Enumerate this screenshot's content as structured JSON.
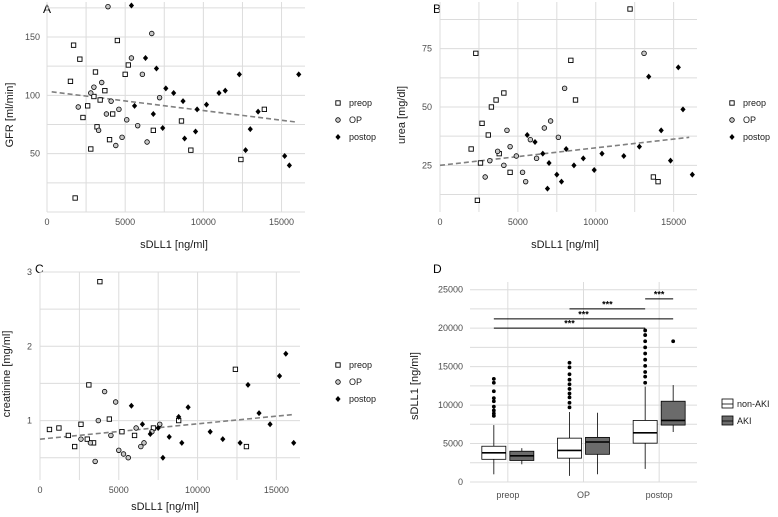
{
  "chart_data": [
    {
      "panel": "A",
      "type": "scatter",
      "xlabel": "sDLL1 [ng/ml]",
      "ylabel": "GFR [ml/min]",
      "xlim": [
        0,
        16500
      ],
      "ylim": [
        0,
        180
      ],
      "xticks": [
        0,
        5000,
        10000,
        15000
      ],
      "yticks": [
        50,
        100,
        150
      ],
      "legend": [
        "preop",
        "OP",
        "postop"
      ],
      "trend": [
        [
          300,
          103
        ],
        [
          16000,
          77
        ]
      ],
      "series": [
        {
          "name": "preop",
          "marker": "square",
          "points": [
            [
              1700,
              143
            ],
            [
              2100,
              131
            ],
            [
              1500,
              112
            ],
            [
              3000,
              99
            ],
            [
              3400,
              96
            ],
            [
              1800,
              12
            ],
            [
              2300,
              81
            ],
            [
              4000,
              62
            ],
            [
              2800,
              54
            ],
            [
              3200,
              73
            ],
            [
              4500,
              147
            ],
            [
              5200,
              126
            ],
            [
              3700,
              104
            ],
            [
              5000,
              118
            ],
            [
              6800,
              70
            ],
            [
              8600,
              78
            ],
            [
              9200,
              53
            ],
            [
              12400,
              45
            ],
            [
              13900,
              88
            ],
            [
              2600,
              91
            ],
            [
              4200,
              84
            ],
            [
              3100,
              120
            ]
          ]
        },
        {
          "name": "OP",
          "marker": "circle",
          "points": [
            [
              2000,
              90
            ],
            [
              2800,
              102
            ],
            [
              3500,
              111
            ],
            [
              4100,
              95
            ],
            [
              4600,
              88
            ],
            [
              5100,
              79
            ],
            [
              3900,
              176
            ],
            [
              6700,
              153
            ],
            [
              5400,
              132
            ],
            [
              6100,
              118
            ],
            [
              4800,
              64
            ],
            [
              3300,
              70
            ],
            [
              7200,
              98
            ],
            [
              5800,
              74
            ],
            [
              6400,
              60
            ],
            [
              4400,
              57
            ],
            [
              3000,
              107
            ],
            [
              3800,
              84
            ]
          ]
        },
        {
          "name": "postop",
          "marker": "diamond",
          "points": [
            [
              5400,
              177
            ],
            [
              6300,
              132
            ],
            [
              7000,
              123
            ],
            [
              7600,
              106
            ],
            [
              8100,
              102
            ],
            [
              8700,
              95
            ],
            [
              9600,
              88
            ],
            [
              10200,
              92
            ],
            [
              11400,
              104
            ],
            [
              12300,
              118
            ],
            [
              12700,
              53
            ],
            [
              13000,
              71
            ],
            [
              13500,
              86
            ],
            [
              15200,
              48
            ],
            [
              15500,
              40
            ],
            [
              16100,
              118
            ],
            [
              11000,
              102
            ],
            [
              6800,
              84
            ],
            [
              7400,
              72
            ],
            [
              8800,
              63
            ],
            [
              9500,
              69
            ],
            [
              5600,
              91
            ]
          ]
        }
      ]
    },
    {
      "panel": "B",
      "type": "scatter",
      "xlabel": "sDLL1 [ng/ml]",
      "ylabel": "urea [mg/dl]",
      "xlim": [
        0,
        16500
      ],
      "ylim": [
        5,
        95
      ],
      "xticks": [
        0,
        5000,
        10000,
        15000
      ],
      "yticks": [
        25,
        50,
        75
      ],
      "legend": [
        "preop",
        "OP",
        "postop"
      ],
      "trend": [
        [
          0,
          25
        ],
        [
          16000,
          37
        ]
      ],
      "series": [
        {
          "name": "preop",
          "marker": "square",
          "points": [
            [
              2300,
              73
            ],
            [
              3300,
              50
            ],
            [
              3600,
              53
            ],
            [
              4100,
              56
            ],
            [
              2700,
              43
            ],
            [
              3100,
              38
            ],
            [
              2000,
              32
            ],
            [
              2600,
              26
            ],
            [
              8400,
              70
            ],
            [
              8700,
              53
            ],
            [
              12200,
              92
            ],
            [
              13700,
              20
            ],
            [
              14000,
              18
            ],
            [
              2400,
              10
            ],
            [
              4500,
              22
            ],
            [
              3800,
              30
            ]
          ]
        },
        {
          "name": "OP",
          "marker": "circle",
          "points": [
            [
              3200,
              27
            ],
            [
              3700,
              31
            ],
            [
              4100,
              25
            ],
            [
              4500,
              33
            ],
            [
              4900,
              29
            ],
            [
              5300,
              22
            ],
            [
              5800,
              36
            ],
            [
              6200,
              28
            ],
            [
              6700,
              41
            ],
            [
              7100,
              44
            ],
            [
              7600,
              37
            ],
            [
              8000,
              58
            ],
            [
              13100,
              73
            ],
            [
              2900,
              20
            ],
            [
              4300,
              40
            ],
            [
              5500,
              18
            ]
          ]
        },
        {
          "name": "postop",
          "marker": "diamond",
          "points": [
            [
              5600,
              38
            ],
            [
              6100,
              35
            ],
            [
              6600,
              30
            ],
            [
              7000,
              26
            ],
            [
              7500,
              21
            ],
            [
              8100,
              32
            ],
            [
              8600,
              25
            ],
            [
              9200,
              28
            ],
            [
              10400,
              30
            ],
            [
              11800,
              29
            ],
            [
              12800,
              33
            ],
            [
              13400,
              63
            ],
            [
              14200,
              40
            ],
            [
              14800,
              27
            ],
            [
              15300,
              67
            ],
            [
              15600,
              49
            ],
            [
              16200,
              21
            ],
            [
              6900,
              15
            ],
            [
              7800,
              18
            ],
            [
              9900,
              23
            ]
          ]
        }
      ]
    },
    {
      "panel": "C",
      "type": "scatter",
      "xlabel": "sDLL1 [ng/ml]",
      "ylabel": "creatinine [mg/ml]",
      "xlim": [
        0,
        16500
      ],
      "ylim": [
        0.2,
        3.0
      ],
      "xticks": [
        0,
        5000,
        10000,
        15000
      ],
      "yticks": [
        1,
        2,
        3
      ],
      "legend": [
        "preop",
        "OP",
        "postop"
      ],
      "trend": [
        [
          0,
          0.75
        ],
        [
          16000,
          1.08
        ]
      ],
      "series": [
        {
          "name": "preop",
          "marker": "square",
          "points": [
            [
              1200,
              0.9
            ],
            [
              1800,
              0.8
            ],
            [
              2600,
              0.95
            ],
            [
              3100,
              1.48
            ],
            [
              3400,
              0.7
            ],
            [
              3800,
              2.87
            ],
            [
              4400,
              1.02
            ],
            [
              5200,
              0.85
            ],
            [
              6000,
              0.8
            ],
            [
              7200,
              0.9
            ],
            [
              8800,
              1.0
            ],
            [
              12400,
              1.69
            ],
            [
              13100,
              0.65
            ],
            [
              600,
              0.88
            ],
            [
              2200,
              0.65
            ],
            [
              3000,
              0.75
            ]
          ]
        },
        {
          "name": "OP",
          "marker": "circle",
          "points": [
            [
              2600,
              0.75
            ],
            [
              3200,
              0.7
            ],
            [
              3700,
              1.0
            ],
            [
              4100,
              1.39
            ],
            [
              4500,
              0.8
            ],
            [
              5000,
              0.6
            ],
            [
              5600,
              0.5
            ],
            [
              6100,
              0.9
            ],
            [
              6600,
              0.7
            ],
            [
              7100,
              0.85
            ],
            [
              7600,
              0.95
            ],
            [
              4800,
              1.25
            ],
            [
              5300,
              0.55
            ],
            [
              3500,
              0.45
            ],
            [
              6400,
              0.65
            ]
          ]
        },
        {
          "name": "postop",
          "marker": "diamond",
          "points": [
            [
              5800,
              1.2
            ],
            [
              6500,
              0.95
            ],
            [
              7000,
              0.82
            ],
            [
              7500,
              0.9
            ],
            [
              8200,
              0.78
            ],
            [
              8800,
              1.05
            ],
            [
              9400,
              1.18
            ],
            [
              10800,
              0.85
            ],
            [
              11600,
              0.75
            ],
            [
              12700,
              0.7
            ],
            [
              13200,
              1.48
            ],
            [
              13900,
              1.1
            ],
            [
              14600,
              0.95
            ],
            [
              15200,
              1.6
            ],
            [
              15600,
              1.9
            ],
            [
              16100,
              0.7
            ],
            [
              7800,
              0.5
            ],
            [
              9000,
              0.7
            ]
          ]
        }
      ]
    },
    {
      "panel": "D",
      "type": "box",
      "ylabel": "sDLL1 [ng/ml]",
      "categories": [
        "preop",
        "OP",
        "postop"
      ],
      "ylim": [
        0,
        26000
      ],
      "yticks": [
        0,
        5000,
        10000,
        15000,
        20000,
        25000
      ],
      "legend": [
        "non-AKI",
        "AKI"
      ],
      "series": [
        {
          "name": "non-AKI",
          "color": "#ffffff",
          "boxes": [
            {
              "min": 1000,
              "q1": 2950,
              "median": 3800,
              "q3": 4650,
              "max": 7400,
              "outliers": [
                8600,
                8900,
                9300,
                9800,
                10500,
                10900,
                11800,
                12900,
                13400
              ]
            },
            {
              "min": 800,
              "q1": 3100,
              "median": 4100,
              "q3": 5700,
              "max": 9100,
              "outliers": [
                9700,
                10300,
                11000,
                11500,
                12100,
                12700,
                13300,
                14000,
                14900,
                15500
              ]
            },
            {
              "min": 1700,
              "q1": 5050,
              "median": 6400,
              "q3": 8000,
              "max": 12400,
              "outliers": [
                12900,
                13700,
                14300,
                15100,
                15900,
                16700,
                17500,
                18300,
                19100,
                19700
              ]
            }
          ]
        },
        {
          "name": "AKI",
          "color": "#6b6b6b",
          "boxes": [
            {
              "min": 2300,
              "q1": 2800,
              "median": 3400,
              "q3": 4000,
              "max": 4400,
              "outliers": []
            },
            {
              "min": 1000,
              "q1": 3600,
              "median": 5200,
              "q3": 5800,
              "max": 9000,
              "outliers": []
            },
            {
              "min": 6500,
              "q1": 7400,
              "median": 8000,
              "q3": 10500,
              "max": 12600,
              "outliers": [
                18300
              ]
            }
          ]
        }
      ],
      "significance": [
        {
          "from_group": 2,
          "from_series": 0,
          "to_group": 2,
          "to_series": 1,
          "y": 23800,
          "label": "***"
        },
        {
          "from_group": 1,
          "from_series": 0,
          "to_group": 2,
          "to_series": 0,
          "y": 22500,
          "label": "***"
        },
        {
          "from_group": 0,
          "from_series": 0,
          "to_group": 2,
          "to_series": 1,
          "y": 21200,
          "label": "***"
        },
        {
          "from_group": 0,
          "from_series": 0,
          "to_group": 2,
          "to_series": 0,
          "y": 20000,
          "label": "***"
        }
      ]
    }
  ]
}
